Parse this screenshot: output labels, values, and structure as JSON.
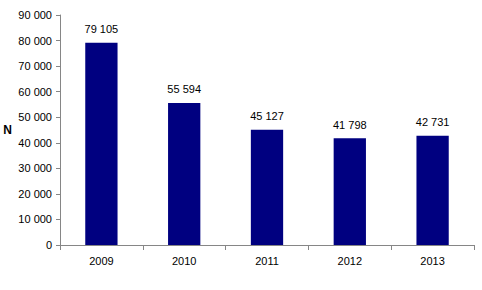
{
  "chart_data": {
    "type": "bar",
    "y_label": "N",
    "categories": [
      "2009",
      "2010",
      "2011",
      "2012",
      "2013"
    ],
    "values": [
      79105,
      55594,
      45127,
      41798,
      42731
    ],
    "value_labels": [
      "79 105",
      "55 594",
      "45 127",
      "41 798",
      "42 731"
    ],
    "color": "#000080",
    "ylim": [
      0,
      90000
    ],
    "yticks": [
      {
        "value": 0,
        "label": "0"
      },
      {
        "value": 10000,
        "label": "10 000"
      },
      {
        "value": 20000,
        "label": "20 000"
      },
      {
        "value": 30000,
        "label": "30 000"
      },
      {
        "value": 40000,
        "label": "40 000"
      },
      {
        "value": 50000,
        "label": "50 000"
      },
      {
        "value": 60000,
        "label": "60 000"
      },
      {
        "value": 70000,
        "label": "70 000"
      },
      {
        "value": 80000,
        "label": "80 000"
      },
      {
        "value": 90000,
        "label": "90 000"
      }
    ],
    "grid": false,
    "data_labels": true
  }
}
